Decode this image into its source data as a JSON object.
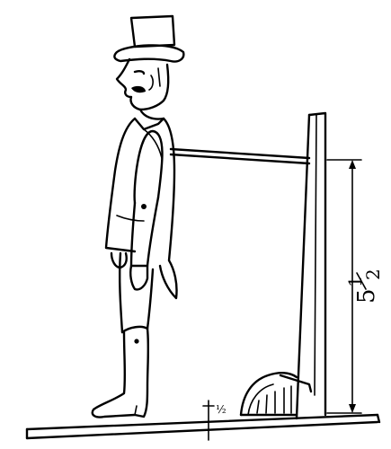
{
  "dimension": {
    "whole": "5",
    "numerator": "1",
    "denominator": "2"
  },
  "colors": {
    "ink": "#000000",
    "paper": "#ffffff"
  }
}
